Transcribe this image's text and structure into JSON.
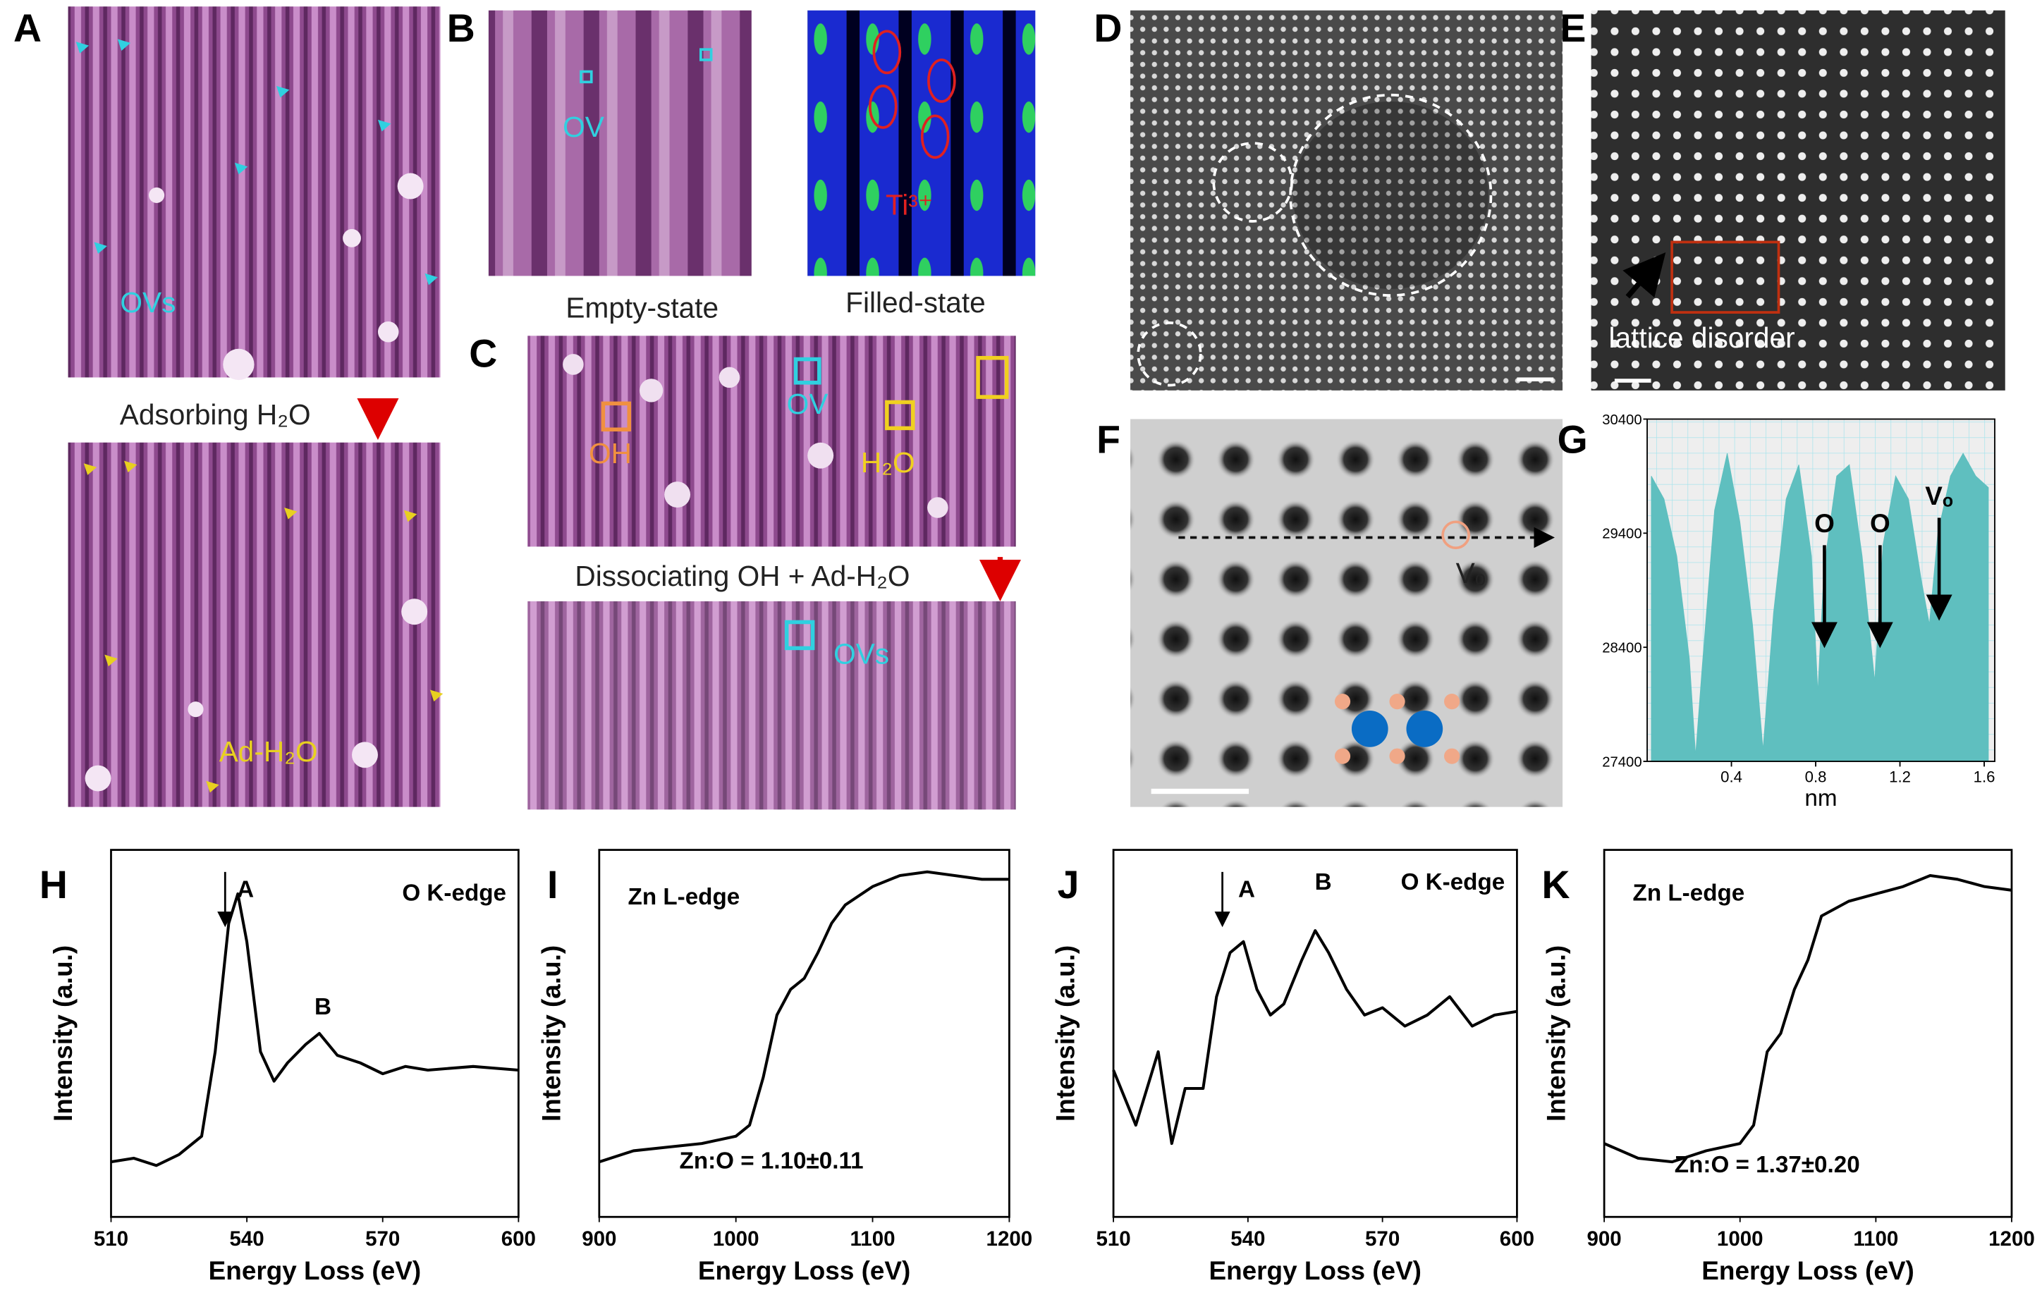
{
  "panels": {
    "A": {
      "label": "A",
      "ovs": "OVs",
      "step": "Adsorbing H₂O",
      "adsorbate": "Ad-H₂O"
    },
    "B": {
      "label": "B",
      "ov": "OV",
      "empty": "Empty-state",
      "filled": "Filled-state",
      "ti": "Ti³⁺"
    },
    "C": {
      "label": "C",
      "oh": "OH",
      "ov": "OV",
      "h2o": "H₂O",
      "step": "Dissociating OH + Ad-H₂O",
      "ovs": "OVs"
    },
    "D": {
      "label": "D"
    },
    "E": {
      "label": "E",
      "annotation": "lattice disorder"
    },
    "F": {
      "label": "F",
      "vacancy": "Vₒ"
    }
  },
  "chart_data": [
    {
      "type": "area",
      "panel_label": "G",
      "x_label": "nm",
      "color": "#5fbfbf",
      "grid": true,
      "xlim": [
        0,
        1.65
      ],
      "xticks": [
        0.4,
        0.8,
        1.2,
        1.6
      ],
      "ylim": [
        27400,
        30400
      ],
      "yticks": [
        27400,
        28400,
        29400,
        30400
      ],
      "x": [
        0.02,
        0.08,
        0.14,
        0.2,
        0.23,
        0.26,
        0.32,
        0.38,
        0.44,
        0.5,
        0.55,
        0.6,
        0.66,
        0.72,
        0.78,
        0.81,
        0.84,
        0.9,
        0.96,
        1.02,
        1.08,
        1.12,
        1.18,
        1.24,
        1.3,
        1.34,
        1.38,
        1.44,
        1.5,
        1.56,
        1.62
      ],
      "values": [
        29900,
        29700,
        29200,
        28300,
        27450,
        28200,
        29600,
        30100,
        29500,
        28600,
        27500,
        28700,
        29700,
        30000,
        29200,
        28000,
        29100,
        29900,
        30000,
        29200,
        28100,
        29300,
        29900,
        29700,
        29000,
        28600,
        29400,
        29900,
        30100,
        29900,
        29800
      ],
      "annotations": [
        "O",
        "O",
        "Vₒ"
      ]
    },
    {
      "type": "line",
      "panel_label": "H",
      "x_label": "Energy Loss (eV)",
      "y_label": "Intensity (a.u.)",
      "color": "#000000",
      "xlim": [
        510,
        600
      ],
      "xticks": [
        510,
        540,
        570,
        600
      ],
      "ylim": [
        0,
        100
      ],
      "x": [
        510,
        515,
        520,
        525,
        530,
        533,
        536,
        538,
        540,
        543,
        546,
        549,
        553,
        556,
        560,
        565,
        570,
        575,
        580,
        590,
        600
      ],
      "values": [
        15,
        16,
        14,
        17,
        22,
        45,
        80,
        88,
        75,
        45,
        37,
        42,
        47,
        50,
        44,
        42,
        39,
        41,
        40,
        41,
        40
      ],
      "annotations": [
        "A",
        "B",
        "O K-edge"
      ]
    },
    {
      "type": "line",
      "panel_label": "I",
      "x_label": "Energy Loss (eV)",
      "y_label": "Intensity (a.u.)",
      "color": "#000000",
      "xlim": [
        900,
        1200
      ],
      "xticks": [
        900,
        1000,
        1100,
        1200
      ],
      "ylim": [
        0,
        100
      ],
      "x": [
        900,
        925,
        950,
        975,
        1000,
        1010,
        1020,
        1030,
        1040,
        1050,
        1060,
        1070,
        1080,
        1100,
        1120,
        1140,
        1160,
        1180,
        1200
      ],
      "values": [
        15,
        18,
        19,
        20,
        22,
        25,
        38,
        55,
        62,
        65,
        72,
        80,
        85,
        90,
        93,
        94,
        93,
        92,
        92
      ],
      "annotations": [
        "Zn L-edge",
        "Zn:O = 1.10±0.11"
      ]
    },
    {
      "type": "line",
      "panel_label": "J",
      "x_label": "Energy Loss (eV)",
      "y_label": "Intensity (a.u.)",
      "color": "#000000",
      "xlim": [
        510,
        600
      ],
      "xticks": [
        510,
        540,
        570,
        600
      ],
      "ylim": [
        0,
        100
      ],
      "x": [
        510,
        515,
        520,
        523,
        526,
        530,
        533,
        536,
        539,
        542,
        545,
        548,
        552,
        555,
        558,
        562,
        566,
        570,
        575,
        580,
        585,
        590,
        595,
        600
      ],
      "values": [
        40,
        25,
        45,
        20,
        35,
        35,
        60,
        72,
        75,
        62,
        55,
        58,
        70,
        78,
        72,
        62,
        55,
        57,
        52,
        55,
        60,
        52,
        55,
        56
      ],
      "annotations": [
        "A",
        "B",
        "O K-edge"
      ]
    },
    {
      "type": "line",
      "panel_label": "K",
      "x_label": "Energy Loss (eV)",
      "y_label": "Intensity (a.u.)",
      "color": "#000000",
      "xlim": [
        900,
        1200
      ],
      "xticks": [
        900,
        1000,
        1100,
        1200
      ],
      "ylim": [
        0,
        100
      ],
      "x": [
        900,
        925,
        950,
        975,
        1000,
        1010,
        1020,
        1030,
        1040,
        1050,
        1060,
        1080,
        1100,
        1120,
        1140,
        1160,
        1180,
        1200
      ],
      "values": [
        20,
        16,
        15,
        18,
        20,
        25,
        45,
        50,
        62,
        70,
        82,
        86,
        88,
        90,
        93,
        92,
        90,
        89
      ],
      "annotations": [
        "Zn L-edge",
        "Zn:O = 1.37±0.20"
      ]
    }
  ]
}
